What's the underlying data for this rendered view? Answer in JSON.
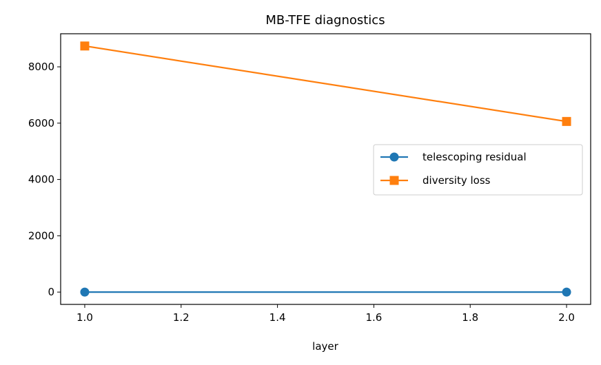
{
  "chart_data": {
    "type": "line",
    "title": "MB-TFE diagnostics",
    "xlabel": "layer",
    "ylabel": "",
    "xlim": [
      0.95,
      2.05
    ],
    "ylim": [
      -437,
      9175
    ],
    "xticks": [
      1.0,
      1.2,
      1.4,
      1.6,
      1.8,
      2.0
    ],
    "xtick_labels": [
      "1.0",
      "1.2",
      "1.4",
      "1.6",
      "1.8",
      "2.0"
    ],
    "yticks": [
      0,
      2000,
      4000,
      6000,
      8000
    ],
    "ytick_labels": [
      "0",
      "2000",
      "4000",
      "6000",
      "8000"
    ],
    "grid": false,
    "legend_position": "center-right",
    "series": [
      {
        "name": "telescoping residual",
        "marker": "circle",
        "color": "#1f77b4",
        "x": [
          1.0,
          2.0
        ],
        "y": [
          0,
          0
        ]
      },
      {
        "name": "diversity loss",
        "marker": "square",
        "color": "#ff7f0e",
        "x": [
          1.0,
          2.0
        ],
        "y": [
          8740,
          6060
        ]
      }
    ]
  }
}
